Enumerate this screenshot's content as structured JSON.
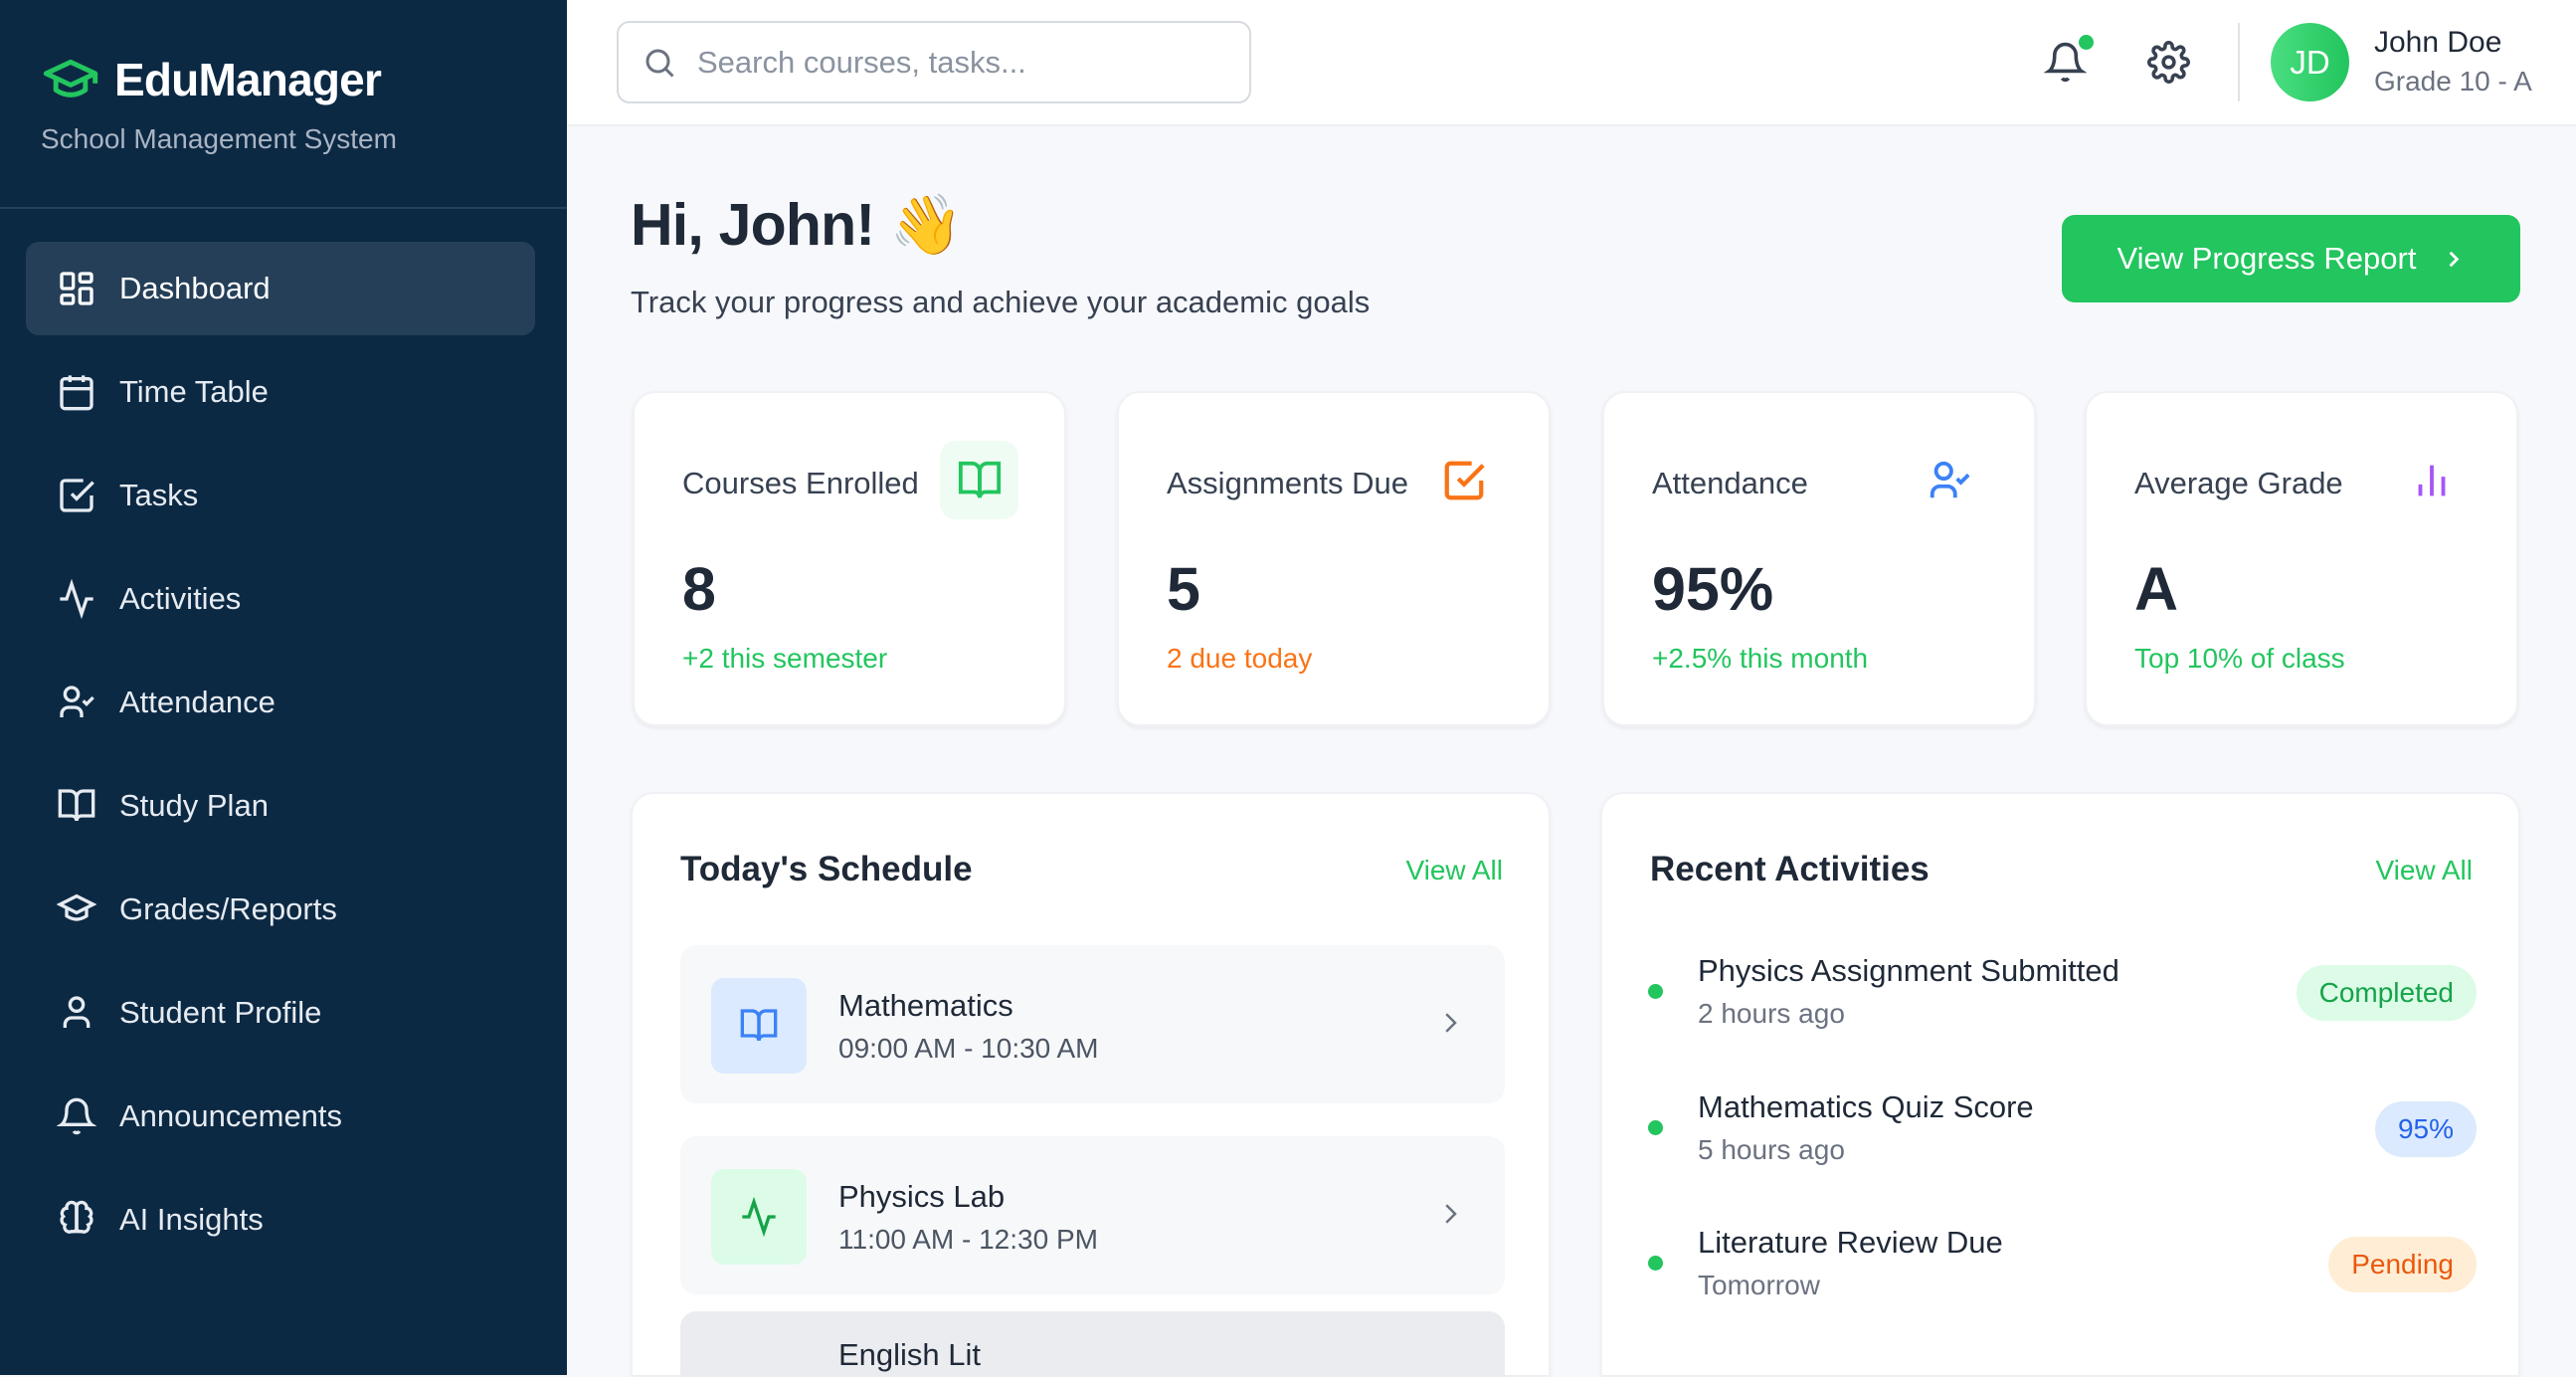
{
  "brand": {
    "name": "EduManager",
    "subtitle": "School Management System",
    "accent": "#22c55e"
  },
  "sidebar": {
    "items": [
      {
        "label": "Dashboard",
        "icon": "dashboard-grid-icon",
        "active": true
      },
      {
        "label": "Time Table",
        "icon": "calendar-icon"
      },
      {
        "label": "Tasks",
        "icon": "checkbox-icon"
      },
      {
        "label": "Activities",
        "icon": "activity-pulse-icon"
      },
      {
        "label": "Attendance",
        "icon": "user-check-icon"
      },
      {
        "label": "Study Plan",
        "icon": "book-open-icon"
      },
      {
        "label": "Grades/Reports",
        "icon": "graduation-cap-icon"
      },
      {
        "label": "Student Profile",
        "icon": "user-icon"
      },
      {
        "label": "Announcements",
        "icon": "bell-icon"
      },
      {
        "label": "AI Insights",
        "icon": "brain-icon"
      }
    ]
  },
  "header": {
    "search_placeholder": "Search courses, tasks...",
    "user": {
      "initials": "JD",
      "name": "John Doe",
      "grade": "Grade 10 - A"
    },
    "notification_dot": true
  },
  "main": {
    "greeting": "Hi, John! 👋",
    "subtitle": "Track your progress and achieve your academic goals",
    "cta": "View Progress Report",
    "stats": [
      {
        "title": "Courses Enrolled",
        "value": "8",
        "sub": "+2 this semester",
        "sub_color": "#22c55e",
        "icon": "book-open-icon",
        "icon_color": "#22c55e"
      },
      {
        "title": "Assignments Due",
        "value": "5",
        "sub": "2 due today",
        "sub_color": "#f97316",
        "icon": "checkbox-icon",
        "icon_color": "#f97316"
      },
      {
        "title": "Attendance",
        "value": "95%",
        "sub": "+2.5% this month",
        "sub_color": "#22c55e",
        "icon": "user-check-icon",
        "icon_color": "#3b82f6"
      },
      {
        "title": "Average Grade",
        "value": "A",
        "sub": "Top 10% of class",
        "sub_color": "#22c55e",
        "icon": "bar-chart-icon",
        "icon_color": "#a855f7"
      }
    ],
    "schedule": {
      "title": "Today's Schedule",
      "view_all": "View All",
      "items": [
        {
          "name": "Mathematics",
          "time": "09:00 AM - 10:30 AM",
          "icon": "book-open-icon"
        },
        {
          "name": "Physics Lab",
          "time": "11:00 AM - 12:30 PM",
          "icon": "activity-pulse-icon"
        },
        {
          "name": "English Lit",
          "time": ""
        }
      ]
    },
    "activities": {
      "title": "Recent Activities",
      "view_all": "View All",
      "items": [
        {
          "title": "Physics Assignment Submitted",
          "time": "2 hours ago",
          "badge": "Completed",
          "badge_bg": "#dcfce7",
          "badge_fg": "#16a34a"
        },
        {
          "title": "Mathematics Quiz Score",
          "time": "5 hours ago",
          "badge": "95%",
          "badge_bg": "#dbeafe",
          "badge_fg": "#2563eb"
        },
        {
          "title": "Literature Review Due",
          "time": "Tomorrow",
          "badge": "Pending",
          "badge_bg": "#ffedd5",
          "badge_fg": "#ea580c"
        }
      ]
    }
  }
}
